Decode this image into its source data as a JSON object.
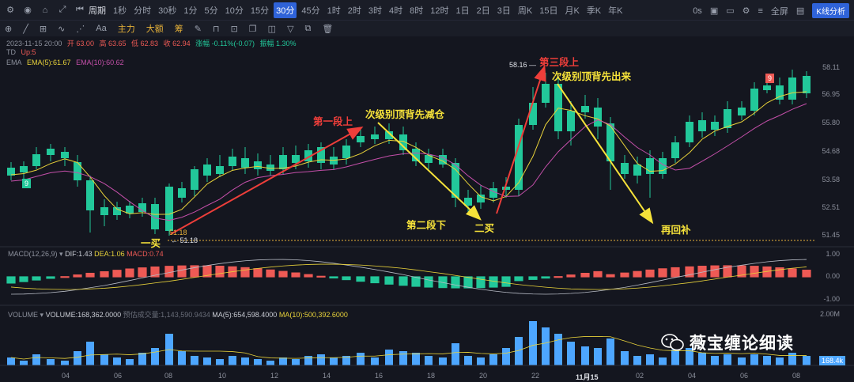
{
  "toolbar": {
    "period_label": "周期",
    "timeframes": [
      "1秒",
      "分时",
      "30秒",
      "1分",
      "5分",
      "10分",
      "15分",
      "30分",
      "45分",
      "1时",
      "2时",
      "3时",
      "4时",
      "8时",
      "12时",
      "1日",
      "2日",
      "3日",
      "周K",
      "15日",
      "月K",
      "季K",
      "年K"
    ],
    "active_timeframe": "30分",
    "right": {
      "countdown": "0s",
      "fullscreen": "全屏",
      "kline_btn": "K线分析"
    }
  },
  "toolbar2": {
    "items": [
      "Aa",
      "主力",
      "大额",
      "筹"
    ]
  },
  "info": {
    "line1": {
      "date": "2023-11-15 20:00",
      "open": "开 63.00",
      "high": "高 63.65",
      "low": "低 62.83",
      "close": "收 62.94",
      "change": "涨幅 -0.11%(-0.07)",
      "amp": "振幅 1.30%"
    },
    "td": {
      "label": "TD",
      "up": "Up:5"
    },
    "ema": {
      "label": "EMA",
      "ema5": "EMA(5):61.67",
      "ema10": "EMA(10):60.62"
    }
  },
  "price_axis": [
    "58.11",
    "56.95",
    "55.80",
    "54.68",
    "53.58",
    "52.51",
    "51.45"
  ],
  "macd_axis": [
    "1.00",
    "0.00",
    "-1.00"
  ],
  "vol_axis": [
    "2.00M"
  ],
  "price_tags": {
    "high": "58.16",
    "low": "51.18",
    "low2": "51.18"
  },
  "td_marks": [
    "9",
    "9"
  ],
  "annotations": {
    "first_buy": "一买",
    "seg1_up": "第一段上",
    "top_div1": "次级别顶背先减仓",
    "seg2_down": "第二段下",
    "second_buy": "二买",
    "seg3_up": "第三段上",
    "top_div2": "次级别顶背先出来",
    "rebuy": "再回补"
  },
  "macd": {
    "label": "MACD(12,26,9)",
    "dif": "DIF:1.43",
    "dea": "DEA:1.06",
    "macd": "MACD:0.74"
  },
  "volume": {
    "label": "VOLUME",
    "vol": "VOLUME:168,362.0000",
    "est": "预估成交量:1,143,590.9434",
    "ma5": "MA(5):654,598.4000",
    "ma10": "MA(10):500,392.6000",
    "badge": "168.4k"
  },
  "x_labels": [
    "04",
    "06",
    "08",
    "10",
    "12",
    "14",
    "16",
    "18",
    "20",
    "22",
    "11月15",
    "02",
    "04",
    "06",
    "08"
  ],
  "watermark": "薇宝缠论细读",
  "colors": {
    "up": "#ee5a55",
    "down": "#22c89a",
    "ema5": "#e8d23a",
    "ema10": "#c44fa9",
    "accent": "#2f63d9"
  }
}
